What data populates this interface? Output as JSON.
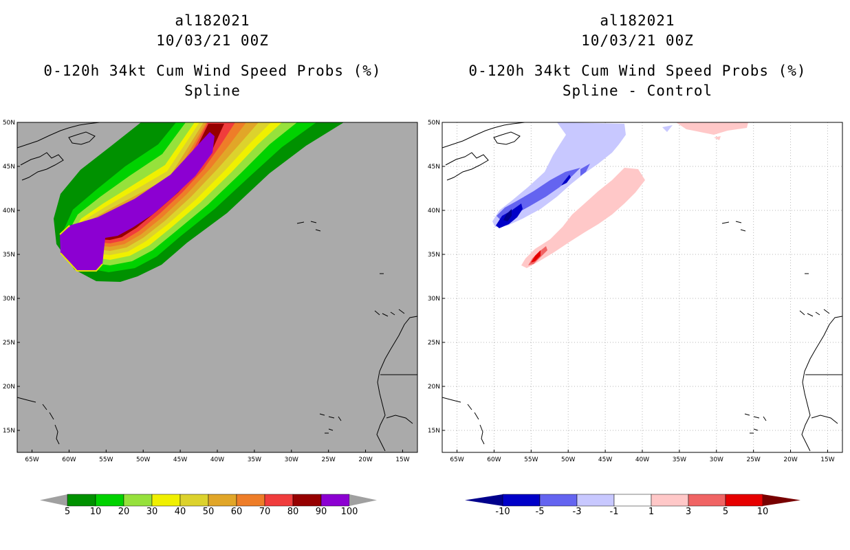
{
  "left_panel": {
    "storm_id": "al182021",
    "datetime": "10/03/21 00Z",
    "product": "0-120h 34kt Cum Wind Speed Probs (%)",
    "subtitle": "Spline",
    "colorbar": {
      "labels": [
        "5",
        "10",
        "20",
        "30",
        "40",
        "50",
        "60",
        "70",
        "80",
        "90",
        "100"
      ],
      "colors": [
        "#009100",
        "#00d200",
        "#96e13c",
        "#f0f000",
        "#dcd22d",
        "#e1a628",
        "#ee7d28",
        "#f03c3c",
        "#960000",
        "#8c00d2"
      ],
      "end_color": "#a0a0a0"
    }
  },
  "right_panel": {
    "storm_id": "al182021",
    "datetime": "10/03/21 00Z",
    "product": "0-120h 34kt Cum Wind Speed Probs (%)",
    "subtitle": "Spline - Control",
    "colorbar": {
      "labels": [
        "-10",
        "-5",
        "-3",
        "-1",
        "1",
        "3",
        "5",
        "10"
      ],
      "colors": [
        "#0000c8",
        "#6464f0",
        "#c8c8ff",
        "#ffffff",
        "#ffc8c8",
        "#f06464",
        "#e60000"
      ],
      "low_end_color": "#00008c",
      "high_end_color": "#780000"
    }
  },
  "map_axes": {
    "lat_labels": [
      "50N",
      "45N",
      "40N",
      "35N",
      "30N",
      "25N",
      "20N",
      "15N"
    ],
    "lon_labels": [
      "65W",
      "60W",
      "55W",
      "50W",
      "45W",
      "40W",
      "35W",
      "30W",
      "25W",
      "20W",
      "15W"
    ],
    "lat_values": [
      50,
      45,
      40,
      35,
      30,
      25,
      20,
      15
    ],
    "lon_values": [
      -65,
      -60,
      -55,
      -50,
      -45,
      -40,
      -35,
      -30,
      -25,
      -20,
      -15
    ],
    "lat_range": [
      12.5,
      50
    ],
    "lon_range": [
      -67,
      -13
    ],
    "gray_fill": "#aaaaaa"
  }
}
